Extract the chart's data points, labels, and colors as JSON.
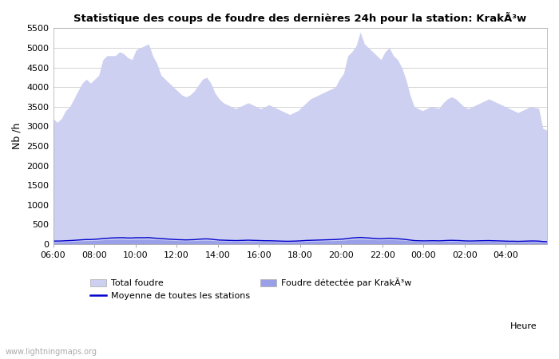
{
  "title": "Statistique des coups de foudre des dernières 24h pour la station: KrakÃ³w",
  "ylabel": "Nb /h",
  "xlabel_right": "Heure",
  "watermark": "www.lightningmaps.org",
  "ylim": [
    0,
    5500
  ],
  "yticks": [
    0,
    500,
    1000,
    1500,
    2000,
    2500,
    3000,
    3500,
    4000,
    4500,
    5000,
    5500
  ],
  "xtick_labels": [
    "06:00",
    "08:00",
    "10:00",
    "12:00",
    "14:00",
    "16:00",
    "18:00",
    "20:00",
    "22:00",
    "00:00",
    "02:00",
    "04:00"
  ],
  "color_total": "#cdd0f0",
  "color_station": "#9aa0e8",
  "color_mean": "#0000cc",
  "bg_color": "#ffffff",
  "grid_color": "#cccccc",
  "total_foudre": [
    3200,
    3100,
    3200,
    3400,
    3500,
    3700,
    3900,
    4100,
    4200,
    4100,
    4200,
    4300,
    4700,
    4800,
    4800,
    4800,
    4900,
    4850,
    4750,
    4700,
    4950,
    5000,
    5050,
    5100,
    4800,
    4600,
    4300,
    4200,
    4100,
    4000,
    3900,
    3800,
    3750,
    3800,
    3900,
    4050,
    4200,
    4250,
    4100,
    3850,
    3700,
    3600,
    3550,
    3500,
    3450,
    3500,
    3550,
    3600,
    3550,
    3500,
    3450,
    3500,
    3550,
    3500,
    3450,
    3400,
    3350,
    3300,
    3350,
    3400,
    3500,
    3600,
    3700,
    3750,
    3800,
    3850,
    3900,
    3950,
    4000,
    4200,
    4350,
    4800,
    4900,
    5050,
    5400,
    5100,
    5000,
    4900,
    4800,
    4700,
    4900,
    5000,
    4800,
    4700,
    4500,
    4200,
    3800,
    3500,
    3450,
    3400,
    3450,
    3500,
    3480,
    3460,
    3600,
    3700,
    3750,
    3700,
    3600,
    3500,
    3450,
    3500,
    3550,
    3600,
    3650,
    3700,
    3650,
    3600,
    3550,
    3500,
    3450,
    3400,
    3350,
    3400,
    3450,
    3500,
    3480,
    3460,
    2950,
    2900
  ],
  "station_foudre": [
    60,
    60,
    60,
    65,
    70,
    75,
    80,
    85,
    90,
    90,
    95,
    100,
    110,
    115,
    120,
    125,
    125,
    125,
    120,
    120,
    125,
    125,
    125,
    125,
    120,
    115,
    110,
    105,
    100,
    95,
    90,
    88,
    85,
    88,
    90,
    95,
    100,
    100,
    95,
    88,
    82,
    80,
    78,
    75,
    72,
    75,
    78,
    80,
    78,
    75,
    72,
    70,
    70,
    68,
    65,
    62,
    60,
    60,
    62,
    65,
    68,
    72,
    75,
    78,
    80,
    82,
    85,
    88,
    90,
    95,
    100,
    110,
    120,
    125,
    130,
    125,
    120,
    115,
    110,
    108,
    112,
    118,
    112,
    108,
    102,
    95,
    85,
    75,
    72,
    68,
    68,
    70,
    70,
    70,
    72,
    75,
    78,
    75,
    72,
    68,
    65,
    65,
    68,
    70,
    72,
    75,
    72,
    68,
    65,
    62,
    60,
    60,
    58,
    60,
    62,
    65,
    65,
    62,
    55,
    55
  ],
  "mean_foudre": [
    80,
    80,
    82,
    88,
    92,
    98,
    105,
    112,
    118,
    118,
    125,
    132,
    145,
    150,
    158,
    162,
    165,
    165,
    158,
    158,
    165,
    165,
    165,
    168,
    158,
    150,
    142,
    135,
    128,
    122,
    115,
    112,
    108,
    112,
    115,
    125,
    132,
    135,
    128,
    115,
    105,
    102,
    98,
    95,
    92,
    95,
    98,
    102,
    98,
    95,
    92,
    88,
    88,
    85,
    82,
    78,
    75,
    75,
    78,
    82,
    88,
    95,
    98,
    102,
    105,
    108,
    112,
    115,
    118,
    125,
    132,
    145,
    158,
    165,
    172,
    165,
    158,
    150,
    142,
    138,
    145,
    152,
    145,
    138,
    130,
    118,
    105,
    92,
    88,
    85,
    85,
    88,
    88,
    85,
    90,
    95,
    98,
    95,
    92,
    85,
    82,
    82,
    85,
    88,
    90,
    92,
    88,
    85,
    82,
    78,
    75,
    75,
    72,
    75,
    78,
    82,
    82,
    78,
    68,
    65
  ],
  "n_points": 120,
  "legend_total": "Total foudre",
  "legend_mean": "Moyenne de toutes les stations",
  "legend_station": "Foudre détectée par KrakÃ³w"
}
